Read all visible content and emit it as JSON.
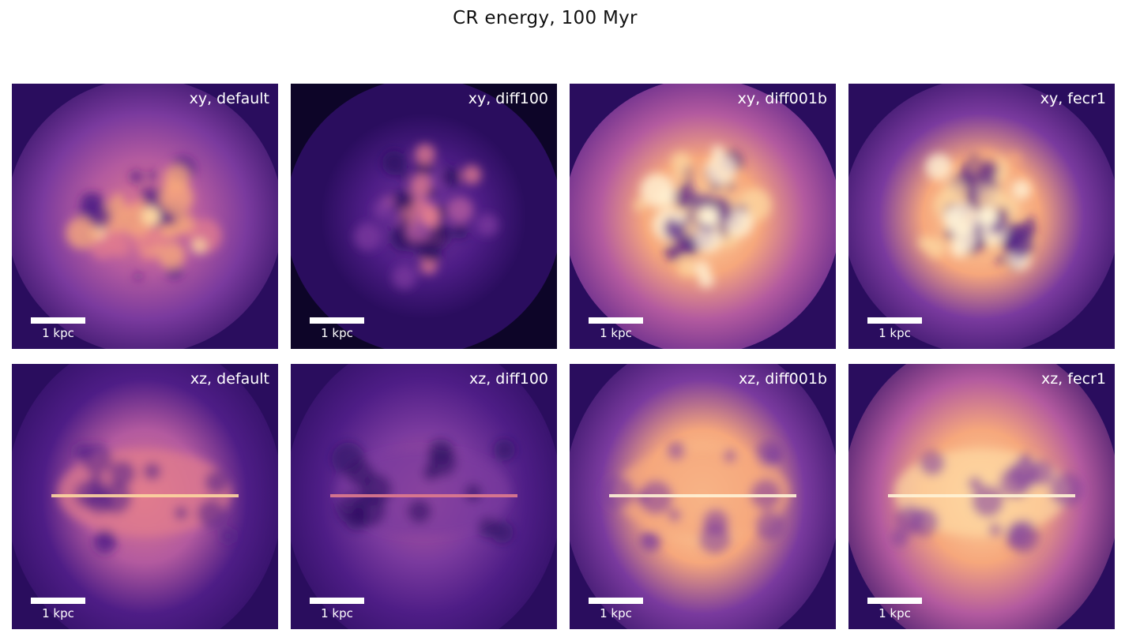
{
  "figure": {
    "title": "CR energy, 100 Myr",
    "colormap": "magma",
    "colors": {
      "background": "#ffffff",
      "cmap_stops": [
        "#0d0528",
        "#2a0d5e",
        "#4e1d86",
        "#7a3a9e",
        "#b35a9f",
        "#e07b8e",
        "#f6a77c",
        "#fdd6a0",
        "#fff3d6"
      ],
      "text": "#111111",
      "overlay_text": "#ffffff"
    },
    "scale_bar_label": "1 kpc",
    "panels": [
      {
        "label": "xy, default",
        "projection": "xy",
        "run": "default",
        "level": 0.55
      },
      {
        "label": "xy, diff100",
        "projection": "xy",
        "run": "diff100",
        "level": 0.3
      },
      {
        "label": "xy, diff001b",
        "projection": "xy",
        "run": "diff001b",
        "level": 0.78
      },
      {
        "label": "xy, fecr1",
        "projection": "xy",
        "run": "fecr1",
        "level": 0.72
      },
      {
        "label": "xz, default",
        "projection": "xz",
        "run": "default",
        "level": 0.52
      },
      {
        "label": "xz, diff100",
        "projection": "xz",
        "run": "diff100",
        "level": 0.32
      },
      {
        "label": "xz, diff001b",
        "projection": "xz",
        "run": "diff001b",
        "level": 0.7
      },
      {
        "label": "xz, fecr1",
        "projection": "xz",
        "run": "fecr1",
        "level": 0.74
      }
    ]
  }
}
